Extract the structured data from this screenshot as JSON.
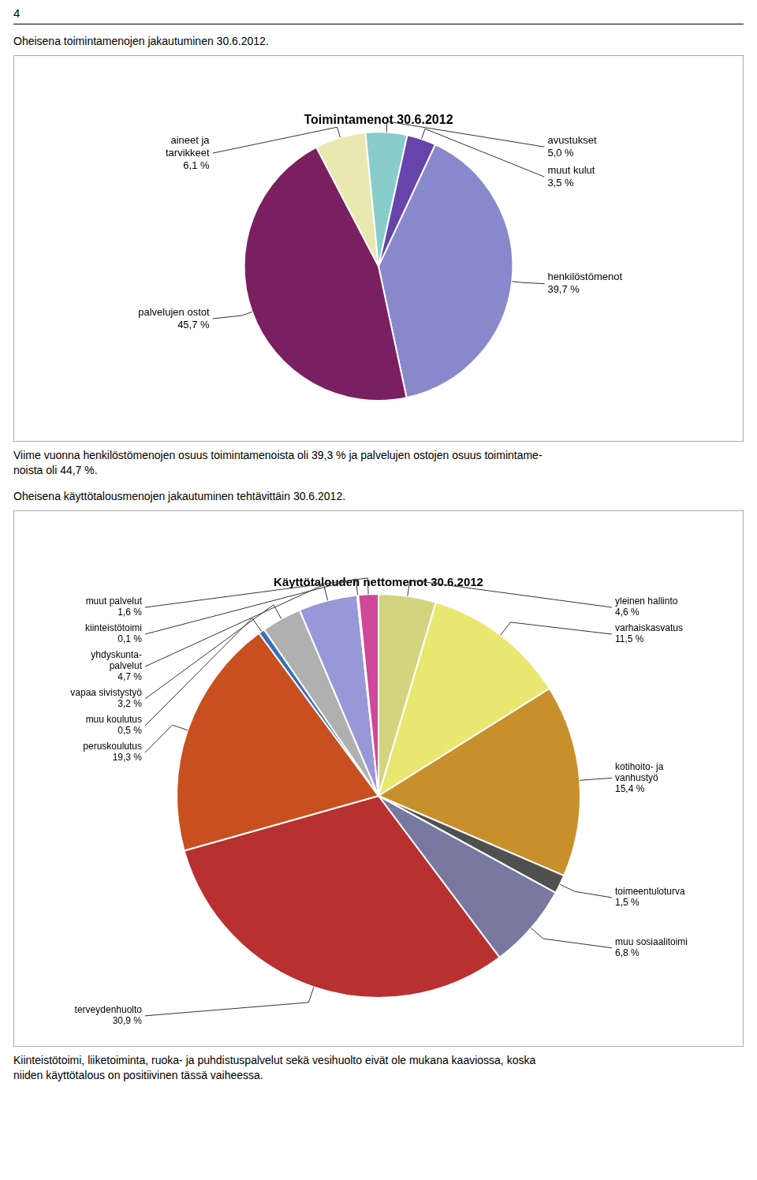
{
  "page_number": "4",
  "chart_data": [
    {
      "type": "pie",
      "title": "Toimintamenot 30.6.2012",
      "annotations": [
        "Oheisena toimintamenojen jakautuminen 30.6.2012."
      ],
      "categories": [
        "henkilöstömenot",
        "palvelujen ostot",
        "aineet ja\ntarvikkeet",
        "avustukset",
        "muut kulut"
      ],
      "values": [
        39.7,
        45.7,
        6.1,
        5.0,
        3.5
      ],
      "value_labels": [
        "39,7 %",
        "45,7 %",
        "6,1 %",
        "5,0 %",
        "3,5 %"
      ],
      "colors": [
        "#8888cc",
        "#7a2060",
        "#e8e8b0",
        "#88cccc",
        "#6644aa"
      ],
      "data_labels": true,
      "footnote": [
        "Viime vuonna henkilöstömenojen osuus toimintamenoista oli 39,3 % ja palvelujen ostojen osuus toimintame-",
        "noista oli 44,7 %."
      ]
    },
    {
      "type": "pie",
      "title": "Käyttötalouden nettomenot 30.6.2012",
      "annotations": [
        "Oheisena käyttötalousmenojen jakautuminen tehtävittäin 30.6.2012."
      ],
      "categories": [
        "yleinen hallinto",
        "varhaiskasvatus",
        "kotihoito- ja\nvanhustyö",
        "toimeentuloturva",
        "muu sosiaalitoimi",
        "terveydenhuolto",
        "peruskoulutus",
        "muu koulutus",
        "vapaa sivistystyö",
        "yhdyskunta-\npalvelut",
        "kiinteistötoimi",
        "muut palvelut"
      ],
      "values": [
        4.6,
        11.5,
        15.4,
        1.5,
        6.8,
        30.9,
        19.3,
        0.5,
        3.2,
        4.7,
        0.1,
        1.6
      ],
      "value_labels": [
        "4,6 %",
        "11,5 %",
        "15,4 %",
        "1,5 %",
        "6,8 %",
        "30,9 %",
        "19,3 %",
        "0,5 %",
        "3,2 %",
        "4,7 %",
        "0,1 %",
        "1,6 %"
      ],
      "colors": [
        "#d4d480",
        "#e8e870",
        "#c8902a",
        "#505050",
        "#7878a0",
        "#b83030",
        "#c85020",
        "#3870b8",
        "#b0b0b0",
        "#9898d8",
        "#30b8b8",
        "#d04898"
      ],
      "data_labels": true,
      "footnote": [
        "Kiinteistötoimi, liiketoiminta, ruoka- ja puhdistuspalvelut sekä vesihuolto eivät ole mukana kaaviossa, koska",
        "niiden käyttötalous on positiivinen tässä vaiheessa."
      ]
    }
  ]
}
